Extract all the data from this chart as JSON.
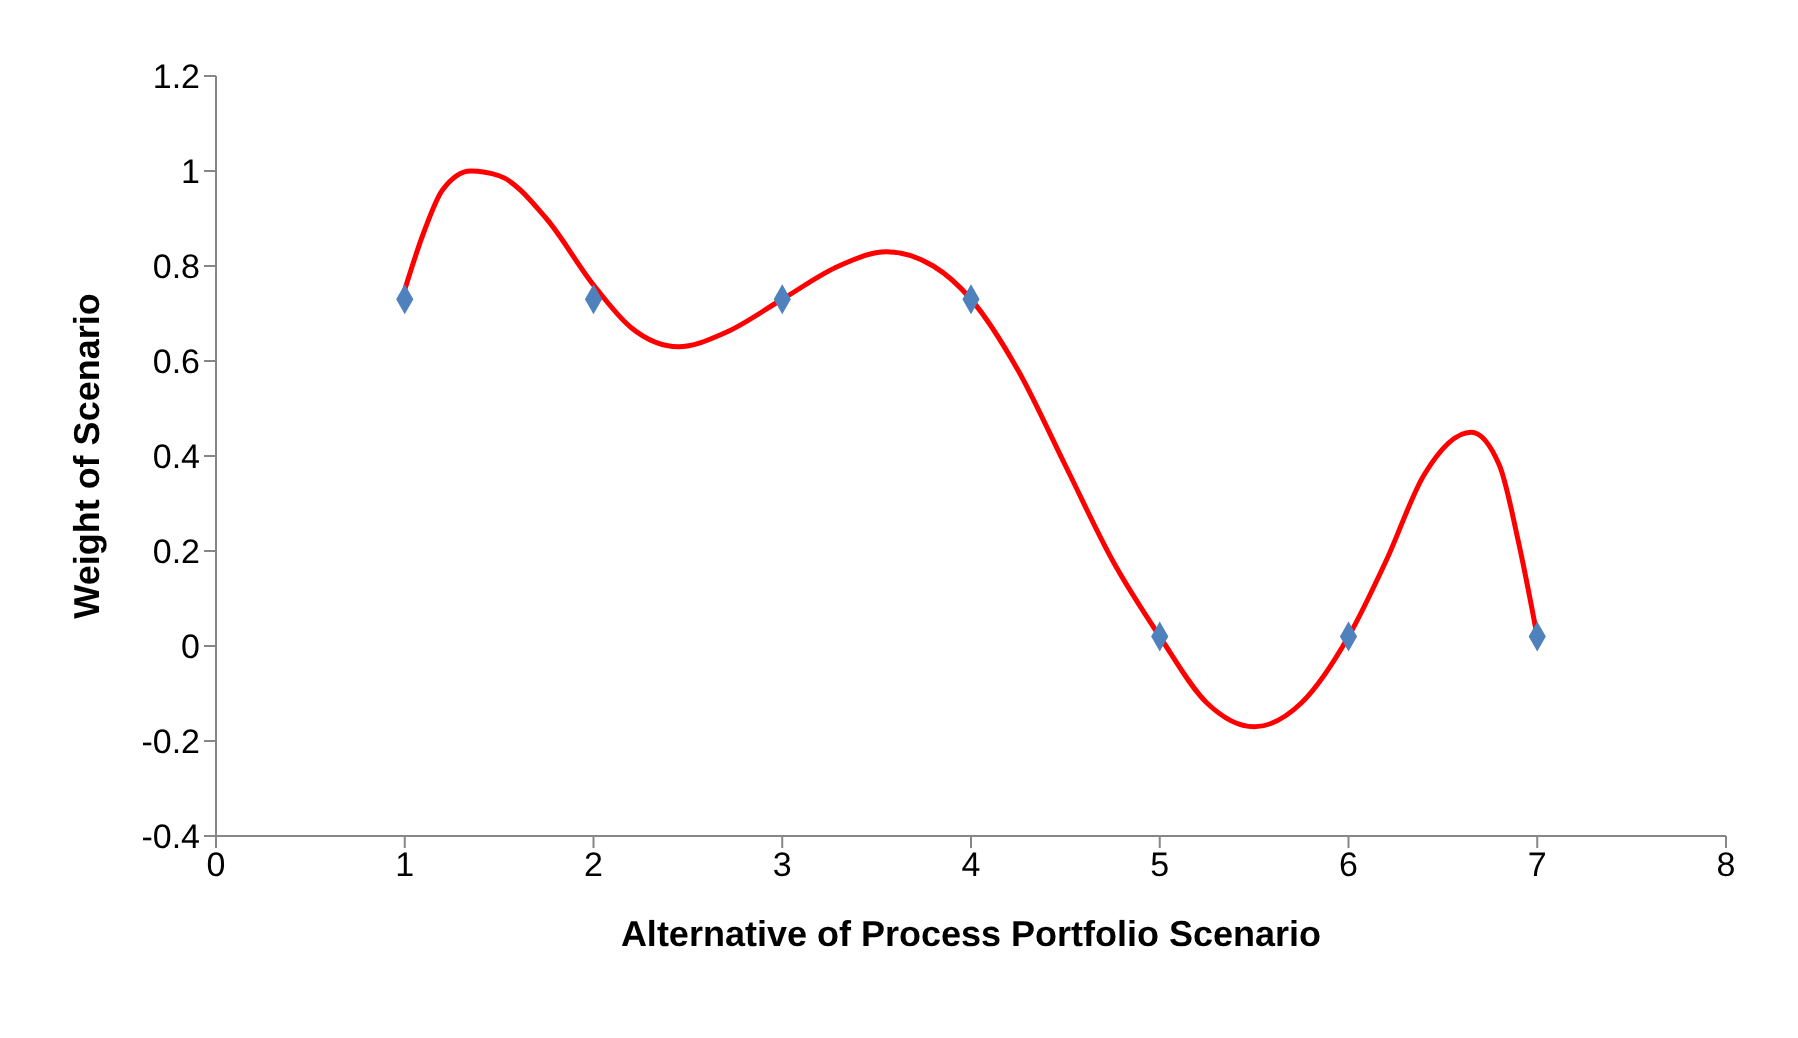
{
  "chart_data": {
    "type": "scatter",
    "xlabel": "Alternative of Process Portfolio Scenario",
    "ylabel": "Weight of Scenario",
    "xlim": [
      0,
      8
    ],
    "xticks": [
      0,
      1,
      2,
      3,
      4,
      5,
      6,
      7,
      8
    ],
    "ylim": [
      -0.4,
      1.2
    ],
    "yticks": [
      -0.4,
      -0.2,
      0,
      0.2,
      0.4,
      0.6,
      0.8,
      1,
      1.2
    ],
    "grid": false,
    "legend": false,
    "marker": "diamond",
    "series": [
      {
        "color": "#4f81bd",
        "x": [
          1,
          2,
          3,
          4,
          5,
          6,
          7
        ],
        "values": [
          0.73,
          0.73,
          0.73,
          0.73,
          0.02,
          0.02,
          0.02
        ]
      },
      {
        "type": "line",
        "color": "#ff0000",
        "marker": "none",
        "line_style": "solid",
        "x": [
          1,
          1.1,
          1.2,
          1.35,
          1.5,
          1.75,
          2,
          2.2,
          2.45,
          2.7,
          3,
          3.3,
          3.55,
          3.8,
          4,
          4.25,
          4.5,
          4.75,
          5,
          5.25,
          5.5,
          5.75,
          6,
          6.2,
          6.4,
          6.65,
          6.8,
          6.9,
          7
        ],
        "values": [
          0.75,
          0.87,
          0.96,
          1.0,
          0.99,
          0.9,
          0.76,
          0.67,
          0.63,
          0.66,
          0.73,
          0.8,
          0.83,
          0.8,
          0.73,
          0.58,
          0.38,
          0.18,
          0.02,
          -0.12,
          -0.17,
          -0.12,
          0.02,
          0.18,
          0.36,
          0.45,
          0.38,
          0.22,
          0.02
        ]
      }
    ]
  }
}
